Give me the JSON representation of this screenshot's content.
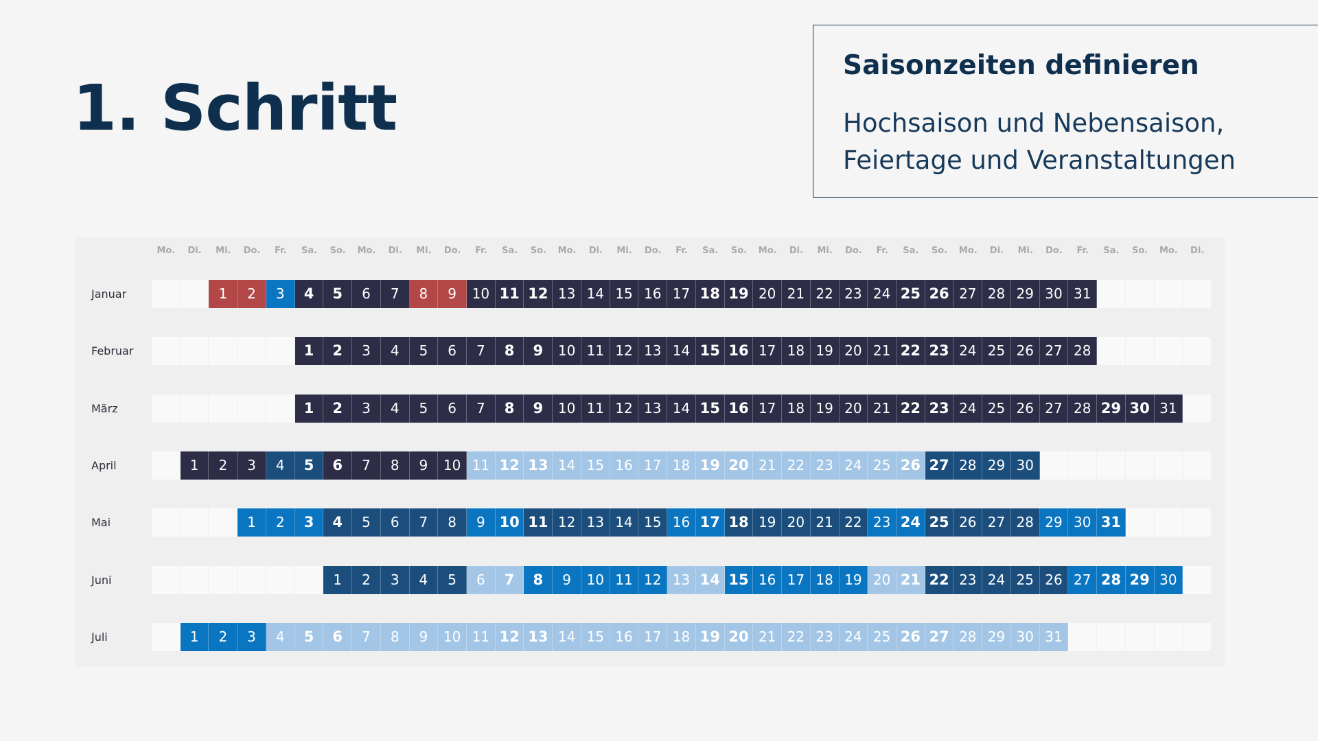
{
  "title": "1. Schritt",
  "info_card": {
    "heading": "Saisonzeiten definieren",
    "line1": "Hochsaison und Nebensaison,",
    "line2": "Feiertage und Veranstaltungen"
  },
  "calendar": {
    "weekdays": [
      "Mo.",
      "Di.",
      "Mi.",
      "Do.",
      "Fr.",
      "Sa.",
      "So.",
      "Mo.",
      "Di.",
      "Mi.",
      "Do.",
      "Fr.",
      "Sa.",
      "So.",
      "Mo.",
      "Di.",
      "Mi.",
      "Do.",
      "Fr.",
      "Sa.",
      "So.",
      "Mo.",
      "Di.",
      "Mi.",
      "Do.",
      "Fr.",
      "Sa.",
      "So.",
      "Mo.",
      "Di.",
      "Mi.",
      "Do.",
      "Fr.",
      "Sa.",
      "So.",
      "Mo.",
      "Di."
    ],
    "colors": {
      "feiertag": "#b34646",
      "hoch": "#2d2d47",
      "event": "#0a76c2",
      "mittel": "#1b4e7d",
      "neben": "#a3c6e6",
      "empty": "#f9f9f9"
    },
    "months": [
      {
        "name": "Januar",
        "offset": 2,
        "days": 31,
        "bold": [
          4,
          5,
          11,
          12,
          18,
          19,
          25,
          26
        ],
        "segments": [
          [
            1,
            2,
            "feiertag"
          ],
          [
            3,
            3,
            "event"
          ],
          [
            4,
            7,
            "hoch"
          ],
          [
            8,
            9,
            "feiertag"
          ],
          [
            10,
            31,
            "hoch"
          ]
        ]
      },
      {
        "name": "Februar",
        "offset": 5,
        "days": 28,
        "bold": [
          1,
          2,
          8,
          9,
          15,
          16,
          22,
          23
        ],
        "segments": [
          [
            1,
            28,
            "hoch"
          ]
        ]
      },
      {
        "name": "März",
        "offset": 5,
        "days": 31,
        "bold": [
          1,
          2,
          8,
          9,
          15,
          16,
          22,
          23,
          29,
          30
        ],
        "segments": [
          [
            1,
            31,
            "hoch"
          ]
        ]
      },
      {
        "name": "April",
        "offset": 1,
        "days": 30,
        "bold": [
          5,
          6,
          12,
          13,
          19,
          20,
          26,
          27
        ],
        "segments": [
          [
            1,
            3,
            "hoch"
          ],
          [
            4,
            5,
            "mittel"
          ],
          [
            6,
            10,
            "hoch"
          ],
          [
            11,
            26,
            "neben"
          ],
          [
            27,
            30,
            "mittel"
          ]
        ]
      },
      {
        "name": "Mai",
        "offset": 3,
        "days": 31,
        "bold": [
          3,
          4,
          10,
          11,
          17,
          18,
          24,
          25,
          31
        ],
        "segments": [
          [
            1,
            3,
            "event"
          ],
          [
            4,
            8,
            "mittel"
          ],
          [
            9,
            10,
            "event"
          ],
          [
            11,
            15,
            "mittel"
          ],
          [
            16,
            17,
            "event"
          ],
          [
            18,
            22,
            "mittel"
          ],
          [
            23,
            24,
            "event"
          ],
          [
            25,
            28,
            "mittel"
          ],
          [
            29,
            31,
            "event"
          ]
        ]
      },
      {
        "name": "Juni",
        "offset": 6,
        "days": 30,
        "bold": [
          7,
          8,
          14,
          15,
          21,
          22,
          28,
          29
        ],
        "segments": [
          [
            1,
            5,
            "mittel"
          ],
          [
            6,
            7,
            "neben"
          ],
          [
            8,
            12,
            "event"
          ],
          [
            13,
            14,
            "neben"
          ],
          [
            15,
            19,
            "event"
          ],
          [
            20,
            21,
            "neben"
          ],
          [
            22,
            26,
            "mittel"
          ],
          [
            27,
            30,
            "event"
          ]
        ]
      },
      {
        "name": "Juli",
        "offset": 1,
        "days": 31,
        "bold": [
          5,
          6,
          12,
          13,
          19,
          20,
          26,
          27
        ],
        "segments": [
          [
            1,
            3,
            "event"
          ],
          [
            4,
            31,
            "neben"
          ]
        ]
      }
    ]
  }
}
